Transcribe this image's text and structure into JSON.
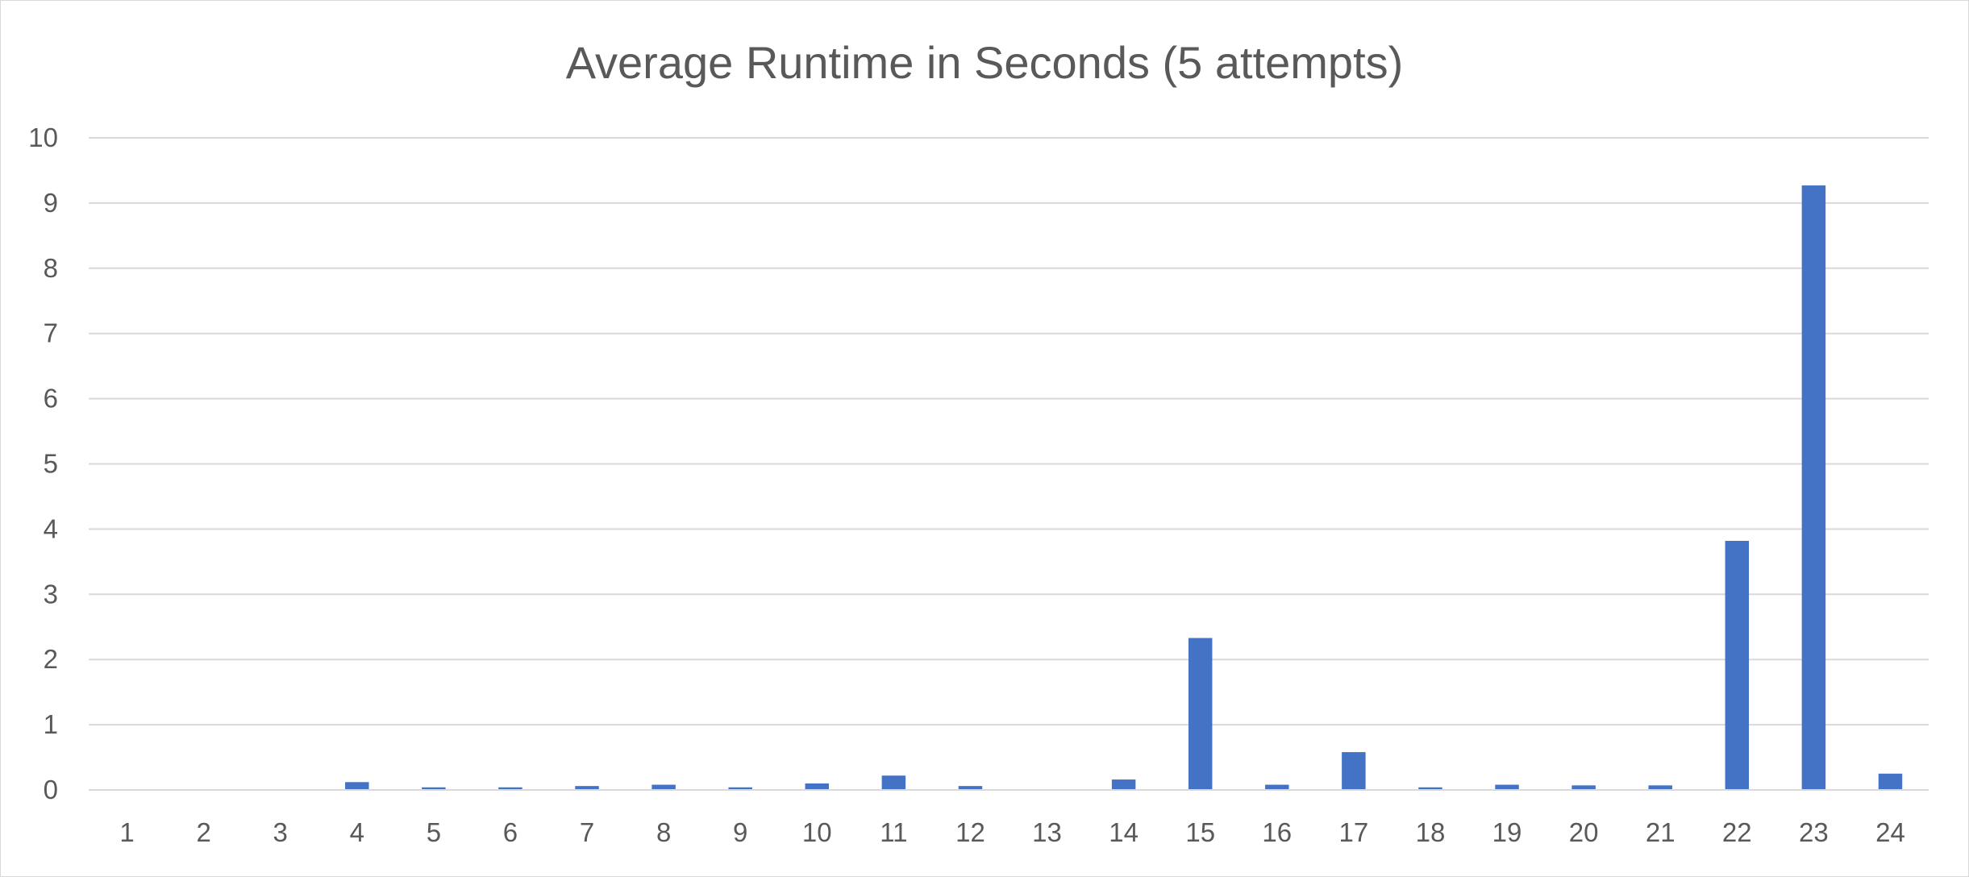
{
  "chart_data": {
    "type": "bar",
    "title": "Average Runtime in Seconds (5 attempts)",
    "xlabel": "",
    "ylabel": "",
    "categories": [
      "1",
      "2",
      "3",
      "4",
      "5",
      "6",
      "7",
      "8",
      "9",
      "10",
      "11",
      "12",
      "13",
      "14",
      "15",
      "16",
      "17",
      "18",
      "19",
      "20",
      "21",
      "22",
      "23",
      "24"
    ],
    "values": [
      0,
      0,
      0,
      0.12,
      0.04,
      0.04,
      0.06,
      0.08,
      0.04,
      0.1,
      0.22,
      0.06,
      0,
      0.16,
      2.33,
      0.08,
      0.58,
      0.04,
      0.08,
      0.07,
      0.07,
      3.82,
      9.27,
      0.25
    ],
    "ylim": [
      0,
      10
    ],
    "yticks": [
      "0",
      "1",
      "2",
      "3",
      "4",
      "5",
      "6",
      "7",
      "8",
      "9",
      "10"
    ],
    "grid": true,
    "legend": "none",
    "bar_color": "#4472C4",
    "grid_color": "#d9d9d9",
    "text_color": "#595959"
  }
}
